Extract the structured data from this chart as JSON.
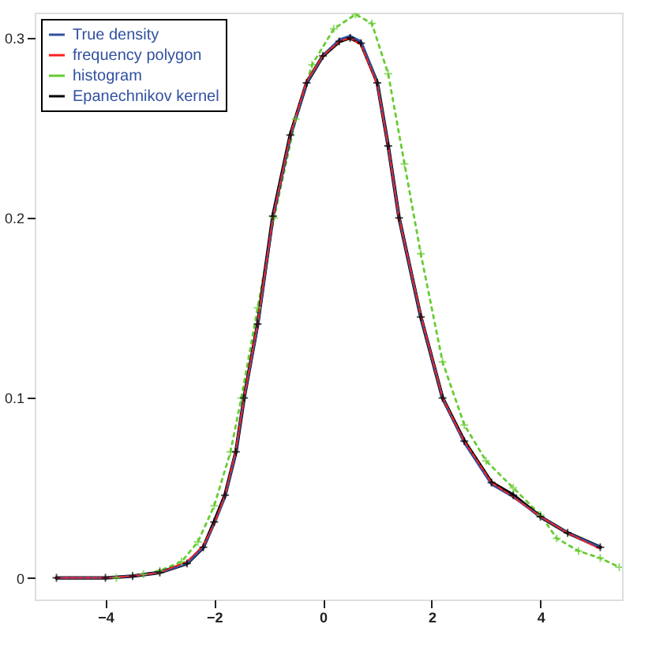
{
  "chart_data": {
    "type": "line",
    "xlim": [
      -5.3,
      5.5
    ],
    "ylim": [
      -0.012,
      0.314
    ],
    "xticks": [
      -4,
      -2,
      0,
      2,
      4
    ],
    "yticks": [
      0,
      0.1,
      0.2,
      0.3
    ],
    "grid": false,
    "legend": "top left",
    "series": [
      {
        "name": "True density",
        "color": "#3050a0",
        "line_style": "solid",
        "marker": "none",
        "x": [
          -4.9,
          -4,
          -3.5,
          -3,
          -2.5,
          -2.2,
          -2,
          -1.8,
          -1.6,
          -1.45,
          -1.2,
          -0.92,
          -0.6,
          -0.3,
          0,
          0.3,
          0.5,
          0.7,
          1,
          1.2,
          1.4,
          1.8,
          2.2,
          2.6,
          3.1,
          3.5,
          4,
          4.5,
          5.1
        ],
        "values": [
          0,
          0,
          0.001,
          0.003,
          0.008,
          0.017,
          0.03,
          0.045,
          0.07,
          0.1,
          0.14,
          0.2,
          0.245,
          0.275,
          0.29,
          0.299,
          0.301,
          0.298,
          0.275,
          0.24,
          0.2,
          0.145,
          0.1,
          0.075,
          0.052,
          0.045,
          0.034,
          0.025,
          0.017
        ]
      },
      {
        "name": "frequency polygon",
        "color": "#ff2020",
        "line_style": "dashed",
        "marker": "none",
        "x": [
          -4.9,
          -4,
          -3.5,
          -3,
          -2.5,
          -2.2,
          -2,
          -1.8,
          -1.6,
          -1.45,
          -1.2,
          -0.92,
          -0.6,
          -0.3,
          0,
          0.3,
          0.5,
          0.7,
          1,
          1.2,
          1.4,
          1.8,
          2.2,
          2.6,
          3.1,
          3.5,
          4,
          4.5,
          5.1
        ],
        "values": [
          0,
          0,
          0.001,
          0.003,
          0.009,
          0.018,
          0.03,
          0.046,
          0.071,
          0.1,
          0.142,
          0.2,
          0.246,
          0.276,
          0.29,
          0.298,
          0.3,
          0.296,
          0.274,
          0.24,
          0.2,
          0.146,
          0.1,
          0.076,
          0.053,
          0.045,
          0.034,
          0.025,
          0.016
        ]
      },
      {
        "name": "histogram",
        "color": "#66cc33",
        "line_style": "dotted",
        "marker": "cross",
        "x": [
          -3.8,
          -3.3,
          -3,
          -2.6,
          -2.3,
          -2,
          -1.7,
          -1.5,
          -1.2,
          -0.9,
          -0.5,
          -0.2,
          0.2,
          0.6,
          0.9,
          1.2,
          1.5,
          1.8,
          2.2,
          2.6,
          3,
          3.5,
          4,
          4.3,
          4.7,
          5.1,
          5.45
        ],
        "values": [
          0,
          0.002,
          0.004,
          0.009,
          0.02,
          0.04,
          0.07,
          0.1,
          0.15,
          0.2,
          0.255,
          0.285,
          0.305,
          0.313,
          0.308,
          0.28,
          0.23,
          0.18,
          0.12,
          0.085,
          0.065,
          0.05,
          0.035,
          0.022,
          0.015,
          0.011,
          0.006
        ]
      },
      {
        "name": "Epanechnikov kernel",
        "color": "#000000",
        "line_style": "solid",
        "marker": "cross",
        "x": [
          -4.9,
          -4,
          -3.5,
          -3,
          -2.5,
          -2.2,
          -2,
          -1.8,
          -1.6,
          -1.45,
          -1.2,
          -0.92,
          -0.6,
          -0.3,
          0,
          0.3,
          0.5,
          0.7,
          1,
          1.2,
          1.4,
          1.8,
          2.2,
          2.6,
          3.1,
          3.5,
          4,
          4.5,
          5.1
        ],
        "values": [
          0,
          0,
          0.001,
          0.003,
          0.008,
          0.017,
          0.031,
          0.046,
          0.07,
          0.1,
          0.141,
          0.201,
          0.246,
          0.275,
          0.29,
          0.298,
          0.3,
          0.297,
          0.275,
          0.24,
          0.2,
          0.145,
          0.1,
          0.076,
          0.053,
          0.046,
          0.034,
          0.025,
          0.017
        ]
      }
    ]
  }
}
